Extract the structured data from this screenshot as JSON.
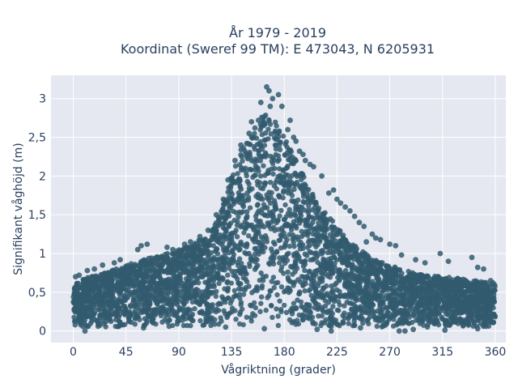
{
  "chart_data": {
    "type": "scatter",
    "title_line1": "År 1979 - 2019",
    "title_line2": "Koordinat (Sweref 99 TM): E 473043, N 6205931",
    "xlabel": "Vågriktning (grader)",
    "ylabel": "Signifikant våghöjd (m)",
    "xlim": [
      -19,
      369
    ],
    "ylim": [
      -0.15,
      3.3
    ],
    "xticks": [
      0,
      45,
      90,
      135,
      180,
      225,
      270,
      315,
      360
    ],
    "xtick_labels": [
      "0",
      "45",
      "90",
      "135",
      "180",
      "225",
      "270",
      "315",
      "360"
    ],
    "yticks": [
      0,
      0.5,
      1,
      1.5,
      2,
      2.5,
      3
    ],
    "ytick_labels": [
      "0",
      "0,5",
      "1",
      "1,5",
      "2",
      "2,5",
      "3"
    ],
    "grid": true,
    "marker_color": "#325a6e",
    "plot_bg": "#e5e8f0",
    "envelope": {
      "x": [
        0,
        10,
        20,
        30,
        45,
        60,
        75,
        90,
        100,
        110,
        120,
        125,
        130,
        135,
        140,
        145,
        150,
        155,
        160,
        165,
        170,
        175,
        180,
        185,
        190,
        195,
        200,
        205,
        210,
        220,
        225,
        230,
        240,
        250,
        260,
        270,
        280,
        290,
        300,
        315,
        330,
        345,
        360
      ],
      "y_min": [
        0.05,
        0.05,
        0.05,
        0.05,
        0.05,
        0.05,
        0.05,
        0.05,
        0.05,
        0.05,
        0.05,
        0.05,
        0.05,
        0.05,
        0.05,
        0.05,
        0.05,
        0.05,
        0.05,
        0.05,
        0.05,
        0.05,
        0.05,
        0.05,
        0.05,
        0.05,
        0.05,
        0.05,
        0.05,
        0.05,
        0.05,
        0.05,
        0.05,
        0.05,
        0.05,
        0.05,
        0.05,
        0.05,
        0.05,
        0.05,
        0.05,
        0.05,
        0.05
      ],
      "y_max": [
        0.62,
        0.68,
        0.72,
        0.78,
        0.85,
        0.92,
        0.98,
        1.05,
        1.1,
        1.2,
        1.35,
        1.5,
        1.75,
        2.05,
        2.25,
        2.4,
        2.5,
        2.6,
        2.75,
        2.85,
        2.8,
        2.7,
        2.5,
        2.35,
        2.2,
        2.05,
        1.9,
        1.75,
        1.6,
        1.45,
        1.35,
        1.25,
        1.1,
        1.0,
        0.9,
        0.85,
        0.8,
        0.75,
        0.72,
        0.7,
        0.68,
        0.65,
        0.6
      ]
    },
    "outliers": [
      {
        "x": 165,
        "y": 3.15
      },
      {
        "x": 167,
        "y": 3.1
      },
      {
        "x": 175,
        "y": 3.05
      },
      {
        "x": 170,
        "y": 3.0
      },
      {
        "x": 160,
        "y": 2.95
      },
      {
        "x": 168,
        "y": 2.9
      },
      {
        "x": 178,
        "y": 2.9
      },
      {
        "x": 158,
        "y": 2.72
      },
      {
        "x": 152,
        "y": 2.7
      },
      {
        "x": 185,
        "y": 2.72
      },
      {
        "x": 190,
        "y": 2.45
      },
      {
        "x": 193,
        "y": 2.32
      },
      {
        "x": 198,
        "y": 2.2
      },
      {
        "x": 205,
        "y": 2.12
      },
      {
        "x": 212,
        "y": 2.0
      },
      {
        "x": 218,
        "y": 1.78
      },
      {
        "x": 225,
        "y": 1.7
      },
      {
        "x": 232,
        "y": 1.6
      },
      {
        "x": 240,
        "y": 1.48
      },
      {
        "x": 248,
        "y": 1.35
      },
      {
        "x": 255,
        "y": 1.25
      },
      {
        "x": 262,
        "y": 1.18
      },
      {
        "x": 270,
        "y": 1.12
      },
      {
        "x": 275,
        "y": 1.1
      },
      {
        "x": 250,
        "y": 1.15
      },
      {
        "x": 258,
        "y": 1.2
      },
      {
        "x": 280,
        "y": 0.98
      },
      {
        "x": 292,
        "y": 0.92
      },
      {
        "x": 300,
        "y": 0.88
      },
      {
        "x": 313,
        "y": 1.0
      },
      {
        "x": 320,
        "y": 0.9
      },
      {
        "x": 340,
        "y": 0.95
      },
      {
        "x": 345,
        "y": 0.82
      },
      {
        "x": 350,
        "y": 0.8
      },
      {
        "x": 12,
        "y": 0.78
      },
      {
        "x": 18,
        "y": 0.8
      },
      {
        "x": 25,
        "y": 0.85
      },
      {
        "x": 35,
        "y": 0.88
      },
      {
        "x": 40,
        "y": 0.92
      },
      {
        "x": 55,
        "y": 1.05
      },
      {
        "x": 58,
        "y": 1.1
      },
      {
        "x": 63,
        "y": 1.12
      },
      {
        "x": 80,
        "y": 1.08
      },
      {
        "x": 85,
        "y": 1.05
      },
      {
        "x": 95,
        "y": 1.12
      },
      {
        "x": 100,
        "y": 1.15
      },
      {
        "x": 108,
        "y": 1.22
      },
      {
        "x": 115,
        "y": 1.3
      },
      {
        "x": 122,
        "y": 1.5
      },
      {
        "x": 128,
        "y": 1.7
      },
      {
        "x": 132,
        "y": 1.95
      },
      {
        "x": 138,
        "y": 2.2
      },
      {
        "x": 143,
        "y": 2.4
      },
      {
        "x": 148,
        "y": 2.42
      },
      {
        "x": 150,
        "y": 2.55
      },
      {
        "x": 155,
        "y": 2.62
      },
      {
        "x": 183,
        "y": 2.6
      },
      {
        "x": 188,
        "y": 2.5
      },
      {
        "x": 196,
        "y": 2.28
      },
      {
        "x": 202,
        "y": 2.15
      },
      {
        "x": 222,
        "y": 1.82
      },
      {
        "x": 228,
        "y": 1.65
      },
      {
        "x": 236,
        "y": 1.55
      },
      {
        "x": 244,
        "y": 1.4
      },
      {
        "x": 2,
        "y": 0.7
      },
      {
        "x": 5,
        "y": 0.72
      },
      {
        "x": 358,
        "y": 0.62
      },
      {
        "x": 356,
        "y": 0.65
      },
      {
        "x": 10,
        "y": 0.0
      },
      {
        "x": 130,
        "y": 0.05
      },
      {
        "x": 163,
        "y": 0.03
      },
      {
        "x": 208,
        "y": 0.02
      },
      {
        "x": 220,
        "y": 0.0
      },
      {
        "x": 245,
        "y": 0.04
      },
      {
        "x": 278,
        "y": 0.0
      },
      {
        "x": 283,
        "y": 0.0
      },
      {
        "x": 290,
        "y": 0.02
      },
      {
        "x": 317,
        "y": 0.01
      },
      {
        "x": 345,
        "y": 0.03
      },
      {
        "x": 60,
        "y": 0.04
      }
    ]
  }
}
